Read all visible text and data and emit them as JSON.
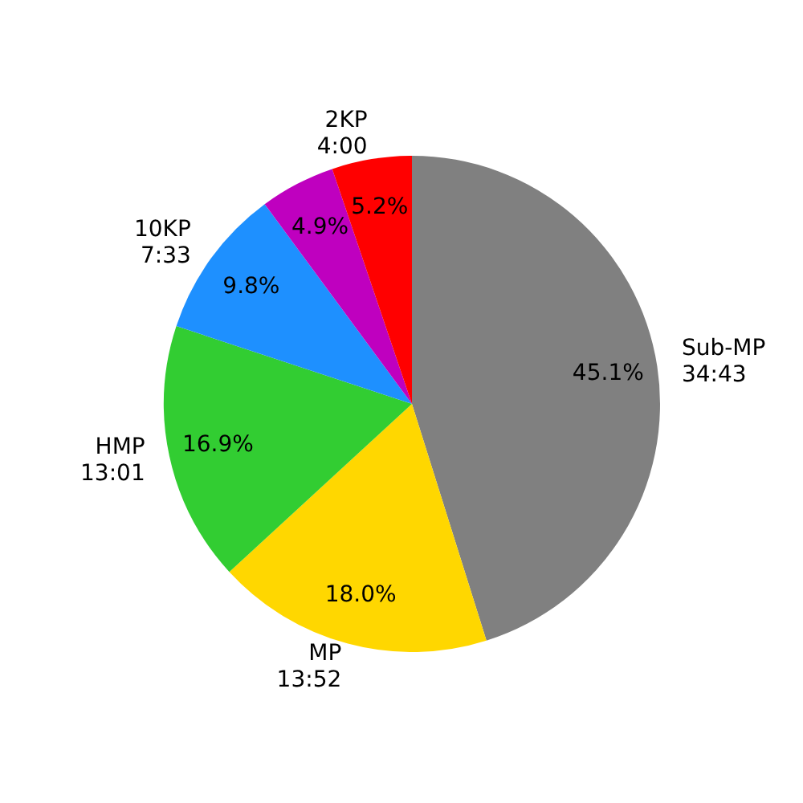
{
  "chart_data": {
    "type": "pie",
    "categories": [
      "2KP\n4:00",
      null,
      "10KP\n7:33",
      "HMP\n13:01",
      "MP\n13:52",
      "Sub-MP\n34:43"
    ],
    "values": [
      5.2,
      4.9,
      9.8,
      16.9,
      18.0,
      45.1
    ],
    "value_labels": [
      "5.2%",
      "4.9%",
      "9.8%",
      "16.9%",
      "18.0%",
      "45.1%"
    ],
    "colors": [
      "#ff0000",
      "#bf00bf",
      "#1e90ff",
      "#32cd32",
      "#ffd700",
      "#808080"
    ]
  }
}
